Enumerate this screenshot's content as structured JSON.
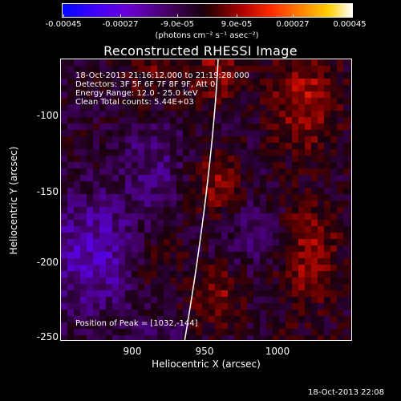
{
  "colorbar": {
    "tick_labels": [
      "-0.00045",
      "-0.00027",
      "-9.0e-05",
      "9.0e-05",
      "0.00027",
      "0.00045"
    ],
    "unit_label": "(photons cm⁻² s⁻¹ asec⁻²)",
    "colors": [
      "#0008ff",
      "#6a00d8",
      "#1a0010",
      "#b00000",
      "#ff8000",
      "#ffffff"
    ]
  },
  "title": "Reconstructed RHESSI Image",
  "info": {
    "time_range": "18-Oct-2013 21:16:12.000 to 21:19:28.000",
    "detectors": "Detectors: 3F 5F 6F 7F 8F 9F, Att 0",
    "energy_range": "Energy Range: 12.0 - 25.0 keV",
    "clean_counts": "Clean    Total counts: 5.44E+03"
  },
  "peak_label": "Position of Peak = [1032,-144]",
  "axes": {
    "xlabel": "Heliocentric X (arcsec)",
    "ylabel": "Heliocentric Y (arcsec)",
    "x_ticks": [
      "900",
      "950",
      "1000"
    ],
    "y_ticks": [
      "-100",
      "-150",
      "-200",
      "-250"
    ],
    "xlim": [
      856,
      1042
    ],
    "ylim": [
      -254,
      -66
    ]
  },
  "footer_date": "18-Oct-2013 22:08"
}
